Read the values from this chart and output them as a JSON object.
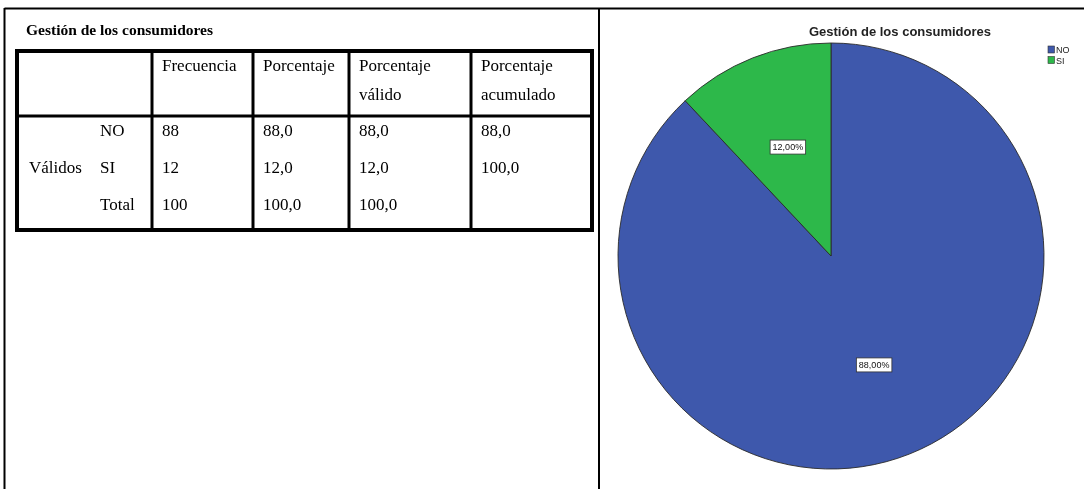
{
  "chart_data": [
    {
      "type": "other",
      "title": "Gestión de los consumidores",
      "categories": [
        "Frecuencia",
        "Porcentaje",
        "Porcentaje válido",
        "Porcentaje acumulado"
      ],
      "y_categories": [
        "NO",
        "SI",
        "Total"
      ],
      "ylabel": "Válidos",
      "cell_labels": [
        [
          "88",
          "88,0",
          "88,0",
          "88,0"
        ],
        [
          "12",
          "12,0",
          "12,0",
          "100,0"
        ],
        [
          "100",
          "100,0",
          "100,0",
          null
        ]
      ]
    },
    {
      "type": "pie",
      "title": "Gestión de los consumidores",
      "categories": [
        "NO",
        "SI"
      ],
      "values": [
        88,
        12
      ],
      "colors": [
        "#3e58ac",
        "#2db84a"
      ],
      "value_labels": [
        "88,00%",
        "12,00%"
      ],
      "legend": "top right"
    }
  ]
}
